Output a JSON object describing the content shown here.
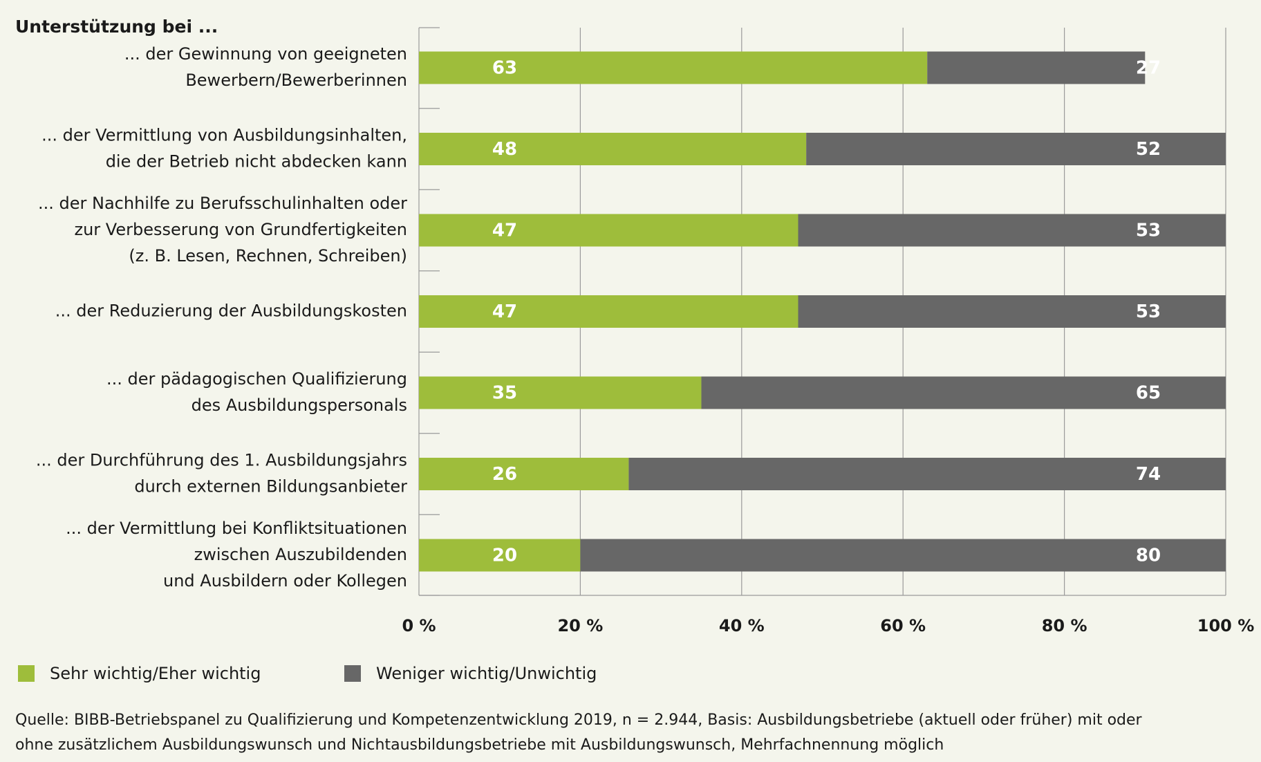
{
  "chart_data": {
    "type": "stacked-barh",
    "title": "Unterstützung bei ...",
    "categories": [
      "... der Gewinnung von geeigneten\nBewerbern/Bewerberinnen",
      "... der Vermittlung von Ausbildungsinhalten,\ndie der Betrieb nicht abdecken kann",
      "... der Nachhilfe zu Berufsschulinhalten oder\nzur Verbesserung von Grundfertigkeiten\n(z. B. Lesen, Rechnen, Schreiben)",
      "... der Reduzierung der Ausbildungskosten",
      "... der pädagogischen Qualifizierung\ndes Ausbildungspersonals",
      "... der Durchführung des 1. Ausbildungsjahrs\ndurch externen Bildungsanbieter",
      "... der Vermittlung bei Konfliktsituationen\nzwischen Auszubildenden\nund Ausbildern oder Kollegen"
    ],
    "series": [
      {
        "name": "Sehr wichtig/Eher wichtig",
        "color": "#9ebd3b",
        "values": [
          63,
          48,
          47,
          47,
          35,
          26,
          20
        ]
      },
      {
        "name": "Weniger wichtig/Unwichtig",
        "color": "#676767",
        "values": [
          27,
          52,
          53,
          53,
          65,
          74,
          80
        ]
      }
    ],
    "xlim": [
      0,
      100
    ],
    "xticks": [
      {
        "value": 0,
        "label": "0 %"
      },
      {
        "value": 20,
        "label": "20 %"
      },
      {
        "value": 40,
        "label": "40 %"
      },
      {
        "value": 60,
        "label": "60 %"
      },
      {
        "value": 80,
        "label": "80 %"
      },
      {
        "value": 100,
        "label": "100 %"
      }
    ],
    "grid": true,
    "source": "Quelle: BIBB-Betriebspanel zu Qualifizierung und Kompetenzentwicklung 2019, n = 2.944, Basis: Ausbildungsbetriebe (aktuell oder früher) mit oder\nohne zusätzlichem Ausbildungswunsch und Nichtausbildungsbetriebe mit Ausbildungswunsch, Mehrfachnennung möglich"
  }
}
